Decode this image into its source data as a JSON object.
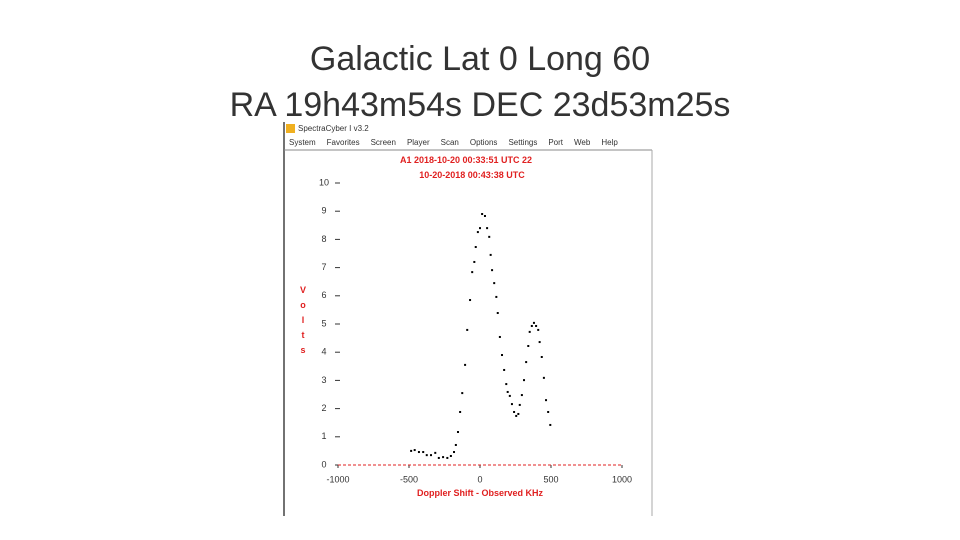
{
  "slide": {
    "title_lines": [
      "Galactic Lat 0 Long 60",
      "RA 19h43m54s DEC 23d53m25s"
    ]
  },
  "window": {
    "title": "SpectraCyber I v3.2",
    "menu": [
      "System",
      "Favorites",
      "Screen",
      "Player",
      "Scan",
      "Options",
      "Settings",
      "Port",
      "Web",
      "Help"
    ]
  },
  "chart_data": {
    "type": "scatter",
    "header_lines": [
      "A1 2018-10-20 00:33:51 UTC 22",
      "10-20-2018 00:43:38 UTC"
    ],
    "x_label": "Doppler Shift - Observed KHz",
    "y_label": "Volts",
    "color": "#000000",
    "label_color": "#e02020",
    "xlim": [
      -1000,
      1000
    ],
    "xticks": [
      -1000,
      -500,
      0,
      500,
      1000
    ],
    "ylim": [
      0,
      10
    ],
    "yticks": [
      0,
      1,
      2,
      3,
      4,
      5,
      6,
      7,
      8,
      9,
      10
    ],
    "x": [
      -485,
      -460,
      -430,
      -400,
      -375,
      -345,
      -315,
      -290,
      -260,
      -230,
      -205,
      -183,
      -170,
      -155,
      -140,
      -125,
      -105,
      -90,
      -70,
      -55,
      -40,
      -30,
      -15,
      0,
      15,
      35,
      50,
      65,
      75,
      85,
      100,
      115,
      125,
      140,
      155,
      170,
      185,
      195,
      210,
      225,
      240,
      255,
      270,
      280,
      295,
      310,
      325,
      340,
      350,
      365,
      380,
      395,
      410,
      420,
      435,
      450,
      465,
      480,
      495
    ],
    "y": [
      0.5,
      0.53,
      0.46,
      0.46,
      0.35,
      0.35,
      0.43,
      0.25,
      0.28,
      0.25,
      0.32,
      0.46,
      0.71,
      1.17,
      1.88,
      2.55,
      3.55,
      4.79,
      5.85,
      6.84,
      7.2,
      7.73,
      8.26,
      8.4,
      8.9,
      8.83,
      8.4,
      8.09,
      7.45,
      6.91,
      6.45,
      5.96,
      5.39,
      4.54,
      3.9,
      3.37,
      2.87,
      2.59,
      2.45,
      2.16,
      1.88,
      1.74,
      1.81,
      2.13,
      2.48,
      3.01,
      3.65,
      4.22,
      4.72,
      4.93,
      5.04,
      4.93,
      4.79,
      4.36,
      3.83,
      3.09,
      2.3,
      1.88,
      1.42
    ]
  }
}
